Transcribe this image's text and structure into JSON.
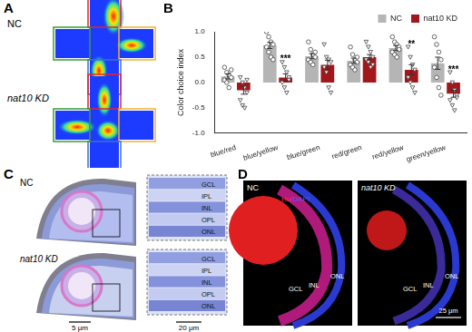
{
  "panel_labels": [
    "A",
    "B",
    "C",
    "D"
  ],
  "panel_a": {
    "groups": [
      "NC",
      "nat10 KD"
    ]
  },
  "chart_data": {
    "type": "bar",
    "ylabel": "Color choice index",
    "categories": [
      "blue/red",
      "blue/yellow",
      "blue/green",
      "red/green",
      "red/yellow",
      "green/yellow"
    ],
    "series": [
      {
        "name": "NC",
        "color": "#b5b5b5",
        "marker": "circle",
        "values": [
          0.12,
          0.73,
          0.52,
          0.43,
          0.68,
          0.38
        ],
        "errors": [
          0.05,
          0.06,
          0.05,
          0.05,
          0.05,
          0.12
        ],
        "points": [
          [
            0.3,
            0.2,
            0.15,
            0.1,
            0.05,
            0.0,
            -0.1,
            0.25
          ],
          [
            1.0,
            0.9,
            0.8,
            0.75,
            0.7,
            0.6,
            0.5,
            0.45
          ],
          [
            0.8,
            0.65,
            0.55,
            0.5,
            0.45,
            0.4,
            0.35,
            0.6
          ],
          [
            0.7,
            0.55,
            0.45,
            0.4,
            0.35,
            0.3,
            0.25,
            0.5
          ],
          [
            0.9,
            0.8,
            0.75,
            0.7,
            0.6,
            0.55,
            0.5,
            0.65
          ],
          [
            0.9,
            0.75,
            0.6,
            0.45,
            0.3,
            0.1,
            -0.1,
            -0.25
          ]
        ]
      },
      {
        "name": "nat10 KD",
        "color": "#a3161c",
        "marker": "triangle-down",
        "values": [
          -0.15,
          0.1,
          0.35,
          0.5,
          0.25,
          -0.22
        ],
        "errors": [
          0.08,
          0.07,
          0.09,
          0.05,
          0.1,
          0.07
        ],
        "points": [
          [
            0.1,
            0.0,
            -0.1,
            -0.2,
            -0.35,
            -0.45,
            -0.5,
            0.05
          ],
          [
            0.4,
            0.3,
            0.2,
            0.1,
            0.0,
            -0.1,
            -0.2,
            0.05
          ],
          [
            0.75,
            0.5,
            0.45,
            0.4,
            0.3,
            0.2,
            -0.1,
            -0.2
          ],
          [
            0.8,
            0.7,
            0.6,
            0.5,
            0.45,
            0.4,
            0.3,
            0.35
          ],
          [
            0.7,
            0.5,
            0.35,
            0.25,
            0.1,
            0.0,
            -0.1,
            -0.2
          ],
          [
            0.2,
            0.0,
            -0.15,
            -0.25,
            -0.35,
            -0.45,
            -0.55,
            -0.3
          ]
        ]
      }
    ],
    "annotations": [
      {
        "category": "blue/yellow",
        "series": "nat10 KD",
        "text": "***"
      },
      {
        "category": "red/yellow",
        "series": "nat10 KD",
        "text": "**"
      },
      {
        "category": "green/yellow",
        "series": "nat10 KD",
        "text": "***"
      }
    ],
    "ylim": [
      -1,
      1
    ],
    "yticks": [
      {
        "value": -1,
        "label": "-1.0"
      },
      {
        "value": -0.5,
        "label": "-0.5"
      },
      {
        "value": 0,
        "label": "0.0"
      },
      {
        "value": 0.5,
        "label": "0.5"
      },
      {
        "value": 1,
        "label": "1.0"
      }
    ],
    "grid": false,
    "legend": "top-right"
  },
  "panel_c": {
    "groups": [
      "NC",
      "nat10 KD"
    ],
    "layers": [
      "GCL",
      "IPL",
      "INL",
      "OPL",
      "ONL"
    ],
    "scale_bars": [
      "5 μm",
      "20 μm"
    ]
  },
  "panel_d": {
    "groups": [
      "NC",
      "nat10 KD"
    ],
    "stain": [
      {
        "text": "Hu",
        "color": "#ff2a2a"
      },
      {
        "text": "/DAPI",
        "color": "#4a5cff"
      }
    ],
    "layers": [
      "ONL",
      "INL",
      "GCL"
    ],
    "scale_bar": "25 μm"
  }
}
